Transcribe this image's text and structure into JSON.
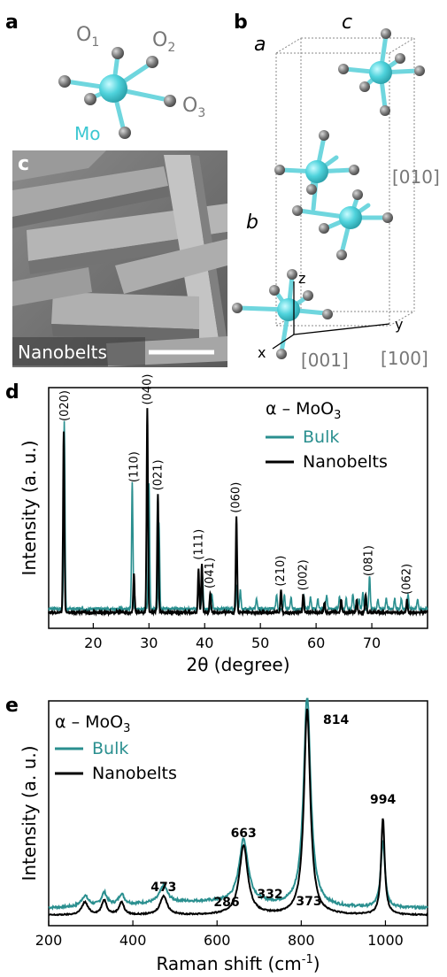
{
  "panels": {
    "a": {
      "label": "a",
      "atoms": {
        "mo": "Mo",
        "o1": "O1",
        "o2": "O2",
        "o3": "O3"
      }
    },
    "b": {
      "label": "b",
      "axes": {
        "a": "a",
        "b": "b",
        "c": "c"
      },
      "directions": {
        "d010": "[010]",
        "d001": "[001]",
        "d100": "[100]"
      },
      "xyz": {
        "x": "x",
        "y": "y",
        "z": "z"
      }
    },
    "c": {
      "label": "c",
      "caption": "Nanobelts"
    },
    "d": {
      "label": "d"
    },
    "e": {
      "label": "e"
    }
  },
  "chart_data": [
    {
      "type": "line",
      "panel": "d",
      "xlabel": "2θ (degree)",
      "ylabel": "Intensity (a. u.)",
      "xlim": [
        12,
        80
      ],
      "ylim": [
        0,
        1.05
      ],
      "xticks": [
        20,
        30,
        40,
        50,
        60,
        70
      ],
      "legend": {
        "title": "α – MoO3",
        "placement": "top-right"
      },
      "series": [
        {
          "name": "Bulk",
          "color": "#2a8f8f",
          "peaks": [
            [
              14.8,
              0.92
            ],
            [
              27.0,
              0.62
            ],
            [
              30.0,
              0.62
            ],
            [
              31.8,
              0.42
            ],
            [
              38.9,
              0.14
            ],
            [
              39.6,
              0.17
            ],
            [
              41.3,
              0.07
            ],
            [
              45.8,
              0.12
            ],
            [
              46.4,
              0.09
            ],
            [
              49.3,
              0.05
            ],
            [
              52.9,
              0.07
            ],
            [
              54.3,
              0.07
            ],
            [
              55.5,
              0.06
            ],
            [
              57.8,
              0.07
            ],
            [
              59.0,
              0.06
            ],
            [
              60.3,
              0.05
            ],
            [
              61.9,
              0.07
            ],
            [
              64.2,
              0.06
            ],
            [
              65.4,
              0.05
            ],
            [
              66.6,
              0.07
            ],
            [
              67.7,
              0.05
            ],
            [
              68.4,
              0.08
            ],
            [
              69.6,
              0.16
            ],
            [
              71.1,
              0.05
            ],
            [
              72.6,
              0.05
            ],
            [
              74.1,
              0.05
            ],
            [
              75.3,
              0.05
            ],
            [
              76.5,
              0.07
            ],
            [
              78.2,
              0.05
            ]
          ]
        },
        {
          "name": "Nanobelts",
          "color": "#000000",
          "peaks": [
            [
              14.7,
              0.89
            ],
            [
              27.3,
              0.19
            ],
            [
              29.7,
              1.0
            ],
            [
              31.6,
              0.58
            ],
            [
              38.9,
              0.21
            ],
            [
              39.5,
              0.24
            ],
            [
              41.0,
              0.1
            ],
            [
              45.7,
              0.47
            ],
            [
              53.7,
              0.11
            ],
            [
              57.7,
              0.09
            ],
            [
              61.5,
              0.05
            ],
            [
              64.5,
              0.06
            ],
            [
              67.3,
              0.06
            ],
            [
              68.9,
              0.09
            ],
            [
              76.3,
              0.06
            ]
          ]
        }
      ],
      "annotations": [
        {
          "text": "(020)",
          "x": 14.9
        },
        {
          "text": "(110)",
          "x": 27.3
        },
        {
          "text": "(040)",
          "x": 29.7
        },
        {
          "text": "(021)",
          "x": 31.6
        },
        {
          "text": "(111)",
          "x": 38.9
        },
        {
          "text": "(041)",
          "x": 40.9
        },
        {
          "text": "(060)",
          "x": 45.6
        },
        {
          "text": "(210)",
          "x": 53.6
        },
        {
          "text": "(002)",
          "x": 57.7
        },
        {
          "text": "(081)",
          "x": 69.4
        },
        {
          "text": "(062)",
          "x": 76.3
        }
      ]
    },
    {
      "type": "line",
      "panel": "e",
      "xlabel": "Raman shift (cm",
      "xlabel_sup": "-1",
      "xlabel_close": ")",
      "ylabel": "Intensity (a. u.)",
      "xlim": [
        200,
        1100
      ],
      "ylim": [
        0,
        1.05
      ],
      "xticks": [
        200,
        400,
        600,
        800,
        1000
      ],
      "legend": {
        "title": "α – MoO3",
        "placement": "top-left"
      },
      "series": [
        {
          "name": "Bulk",
          "color": "#2a8f8f",
          "baseline": 0.06,
          "peaks": [
            [
              286,
              0.05,
              10
            ],
            [
              332,
              0.06,
              8
            ],
            [
              373,
              0.05,
              8
            ],
            [
              473,
              0.08,
              11
            ],
            [
              663,
              0.3,
              13
            ],
            [
              814,
              1.0,
              10
            ],
            [
              994,
              0.32,
              6
            ]
          ]
        },
        {
          "name": "Nanobelts",
          "color": "#000000",
          "baseline": 0.03,
          "peaks": [
            [
              286,
              0.06,
              9
            ],
            [
              332,
              0.07,
              7
            ],
            [
              373,
              0.06,
              7
            ],
            [
              473,
              0.09,
              10
            ],
            [
              663,
              0.33,
              12
            ],
            [
              814,
              0.98,
              9
            ],
            [
              994,
              0.46,
              5
            ]
          ]
        }
      ],
      "peak_labels": [
        "286",
        "332",
        "373",
        "473",
        "663",
        "814",
        "994"
      ]
    }
  ]
}
